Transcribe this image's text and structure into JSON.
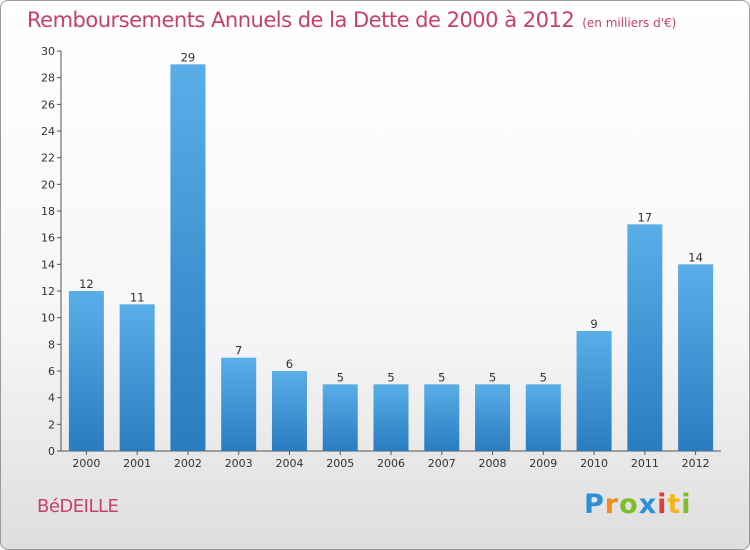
{
  "header": {
    "title": "Remboursements Annuels de la Dette de 2000 à 2012",
    "unit": "(en milliers d'€)"
  },
  "footer": {
    "city": "BéDEILLE",
    "brand": "Proxiti"
  },
  "colors": {
    "title": "#c8406a",
    "bar_light": "#5aaee8",
    "bar_dark": "#2a7cc0"
  },
  "chart_data": {
    "type": "bar",
    "title": "Remboursements Annuels de la Dette de 2000 à 2012",
    "xlabel": "",
    "ylabel": "",
    "categories": [
      "2000",
      "2001",
      "2002",
      "2003",
      "2004",
      "2005",
      "2006",
      "2007",
      "2008",
      "2009",
      "2010",
      "2011",
      "2012"
    ],
    "values": [
      12,
      11,
      29,
      7,
      6,
      5,
      5,
      5,
      5,
      5,
      9,
      17,
      14
    ],
    "ylim": [
      0,
      30
    ],
    "yticks": [
      0,
      2,
      4,
      6,
      8,
      10,
      12,
      14,
      16,
      18,
      20,
      22,
      24,
      26,
      28,
      30
    ],
    "grid": false,
    "data_labels": true
  }
}
